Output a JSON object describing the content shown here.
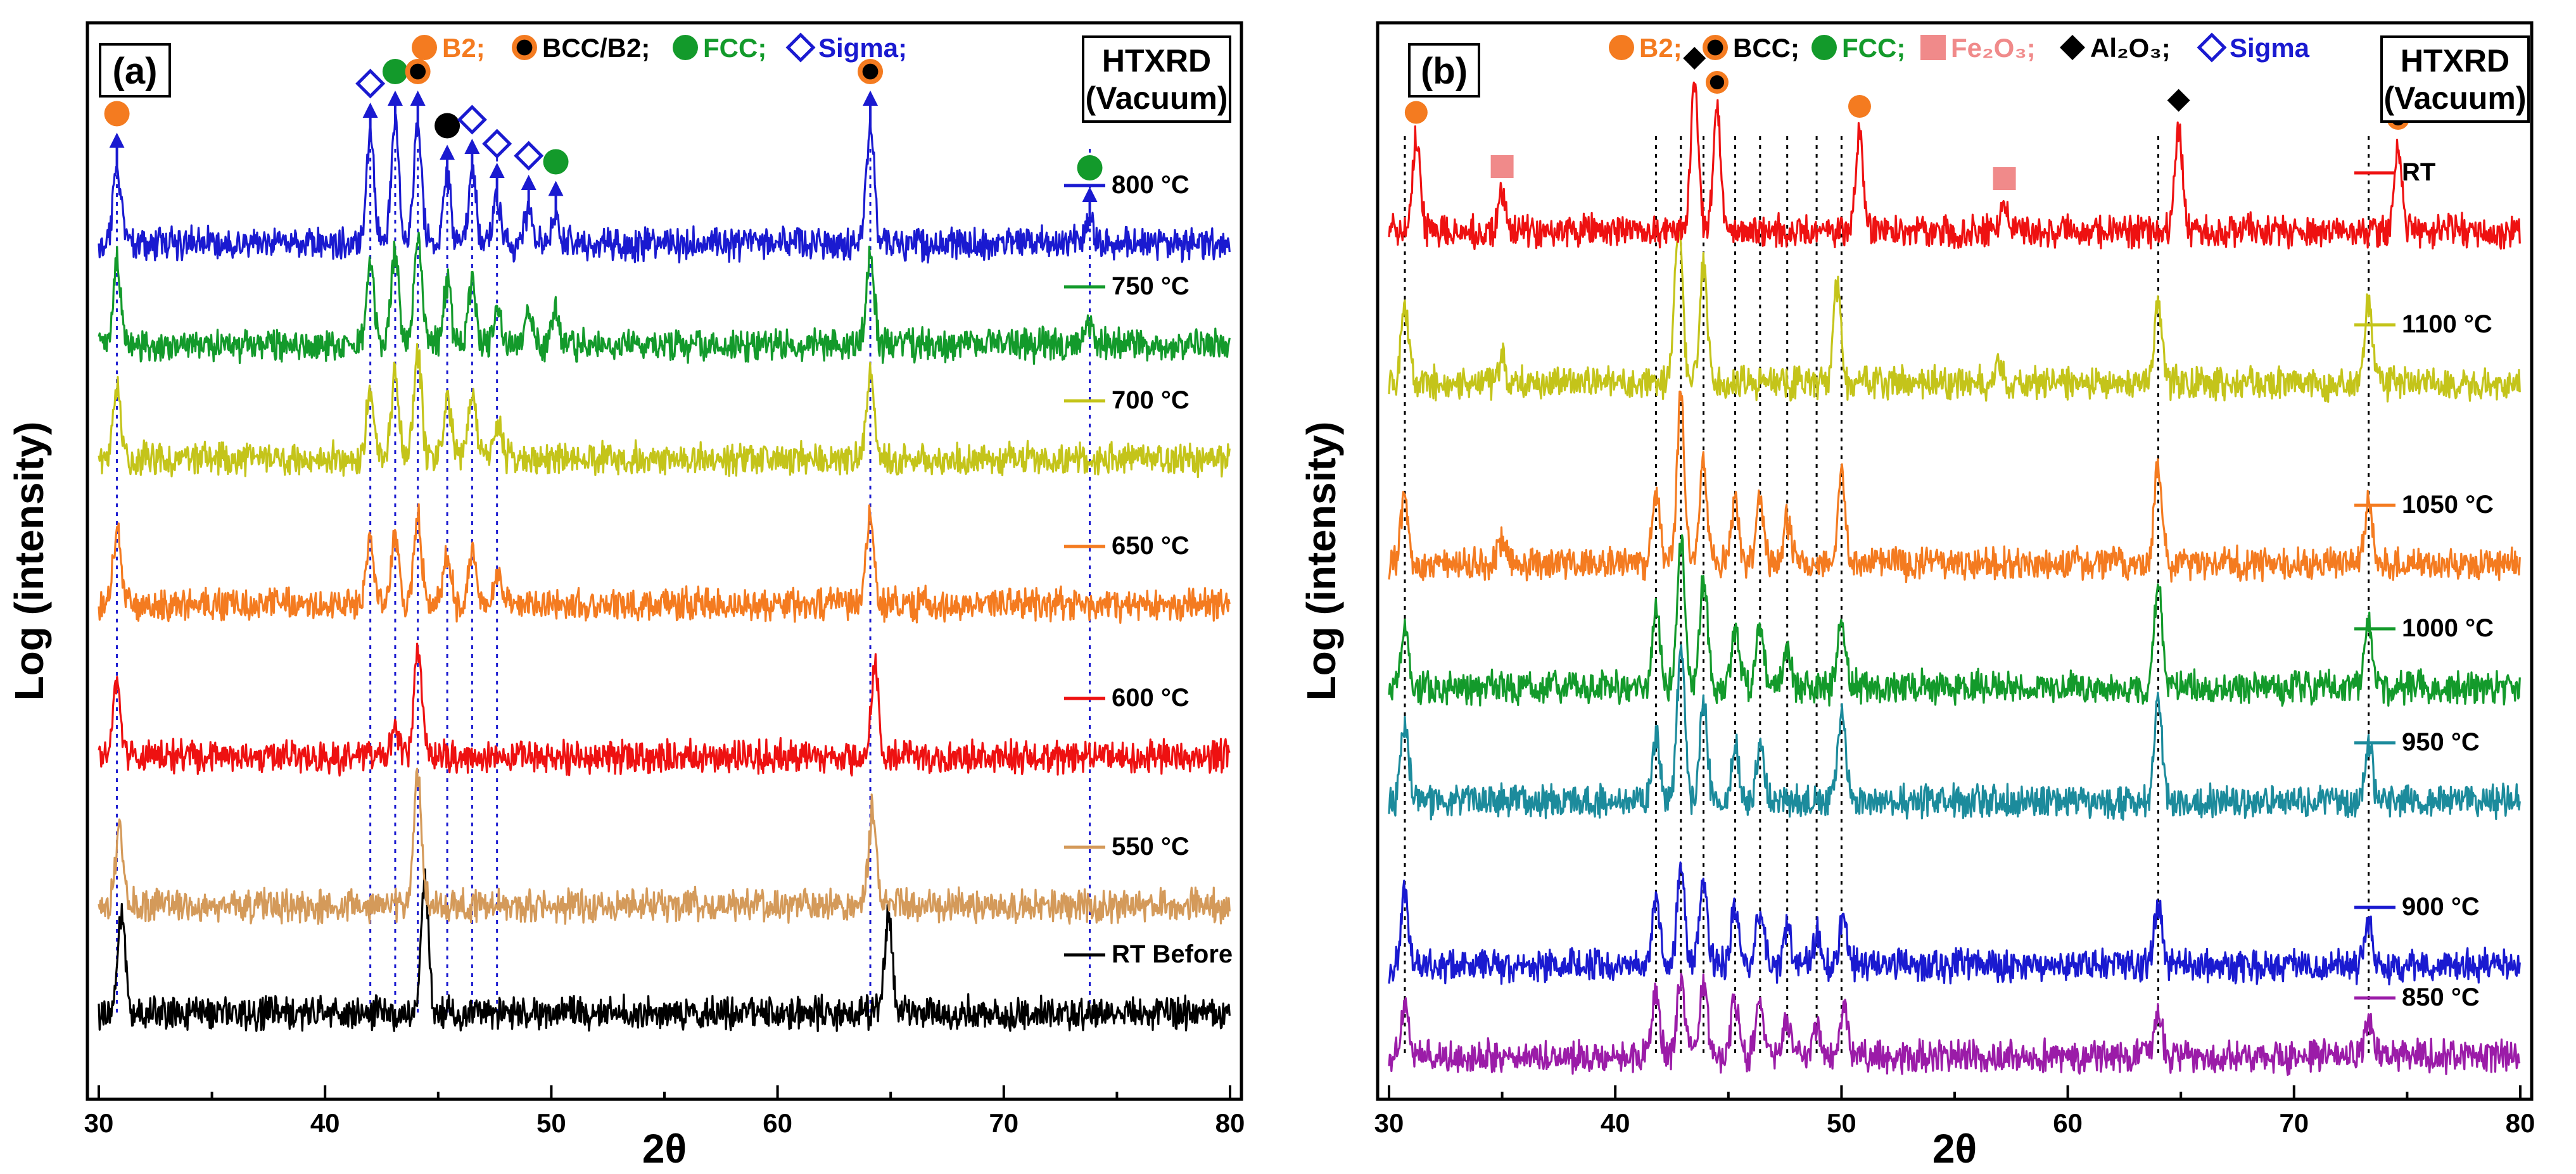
{
  "chart_data": [
    {
      "panel": "(a)",
      "type": "line",
      "title": "HTXRD (Vacuum)",
      "title_lines": [
        "HTXRD",
        "(Vacuum)"
      ],
      "xlabel": "2θ",
      "ylabel": "Log (intensity)",
      "xlim": [
        30,
        80
      ],
      "xticks": [
        30,
        40,
        50,
        60,
        70,
        80
      ],
      "legend": [
        {
          "name": "B2;",
          "marker": "circle",
          "color": "#f47b20"
        },
        {
          "name": "BCC/B2;",
          "marker": "circle-ring",
          "color": "#000000"
        },
        {
          "name": "FCC;",
          "marker": "circle",
          "color": "#139a2b"
        },
        {
          "name": "Sigma;",
          "marker": "diamond-open",
          "color": "#1a1ad0"
        }
      ],
      "series": [
        {
          "name": "RT Before",
          "color": "#000000",
          "peaks": [
            [
              31.0,
              1.6
            ],
            [
              44.4,
              2.2
            ],
            [
              64.9,
              1.6
            ]
          ]
        },
        {
          "name": "550 °C",
          "color": "#d49a5a",
          "peaks": [
            [
              30.9,
              1.3
            ],
            [
              44.1,
              2.2
            ],
            [
              64.2,
              1.6
            ]
          ]
        },
        {
          "name": "600 °C",
          "color": "#ee1111",
          "peaks": [
            [
              30.8,
              1.2
            ],
            [
              43.1,
              0.5
            ],
            [
              44.1,
              1.9
            ],
            [
              64.3,
              1.5
            ]
          ]
        },
        {
          "name": "650 °C",
          "color": "#f47b20",
          "peaks": [
            [
              30.8,
              1.2
            ],
            [
              42.0,
              1.0
            ],
            [
              43.1,
              1.1
            ],
            [
              44.1,
              1.5
            ],
            [
              45.4,
              0.8
            ],
            [
              46.5,
              0.9
            ],
            [
              47.6,
              0.5
            ],
            [
              64.1,
              1.6
            ]
          ]
        },
        {
          "name": "700 °C",
          "color": "#c4c41a",
          "peaks": [
            [
              30.8,
              1.3
            ],
            [
              42.0,
              1.2
            ],
            [
              43.1,
              1.4
            ],
            [
              44.1,
              1.7
            ],
            [
              45.4,
              1.0
            ],
            [
              46.5,
              1.0
            ],
            [
              47.6,
              0.6
            ],
            [
              64.1,
              1.5
            ]
          ]
        },
        {
          "name": "750 °C",
          "color": "#139a2b",
          "peaks": [
            [
              30.8,
              1.4
            ],
            [
              42.0,
              1.4
            ],
            [
              43.1,
              1.6
            ],
            [
              44.1,
              1.8
            ],
            [
              45.4,
              1.0
            ],
            [
              46.5,
              1.1
            ],
            [
              47.6,
              0.7
            ],
            [
              49.0,
              0.6
            ],
            [
              50.2,
              0.6
            ],
            [
              64.1,
              1.6
            ],
            [
              73.8,
              0.3
            ]
          ]
        },
        {
          "name": "800 °C",
          "color": "#1a1ad0",
          "peaks": [
            [
              30.8,
              1.3
            ],
            [
              42.0,
              1.8
            ],
            [
              43.1,
              2.0
            ],
            [
              44.1,
              2.0
            ],
            [
              45.4,
              1.1
            ],
            [
              46.5,
              1.2
            ],
            [
              47.6,
              0.8
            ],
            [
              49.0,
              0.6
            ],
            [
              50.2,
              0.5
            ],
            [
              64.1,
              2.0
            ],
            [
              73.8,
              0.4
            ]
          ]
        }
      ],
      "phase_markers": [
        {
          "x": 30.8,
          "phase": "B2"
        },
        {
          "x": 42.0,
          "phase": "Sigma"
        },
        {
          "x": 43.1,
          "phase": "FCC"
        },
        {
          "x": 44.1,
          "phase": "BCC/B2"
        },
        {
          "x": 45.4,
          "phase": "BCC"
        },
        {
          "x": 46.5,
          "phase": "Sigma"
        },
        {
          "x": 47.6,
          "phase": "Sigma"
        },
        {
          "x": 49.0,
          "phase": "Sigma"
        },
        {
          "x": 50.2,
          "phase": "FCC"
        },
        {
          "x": 64.1,
          "phase": "BCC/B2"
        },
        {
          "x": 73.8,
          "phase": "FCC"
        }
      ],
      "drop_lines": [
        30.8,
        42.0,
        43.1,
        44.1,
        45.4,
        46.5,
        47.6,
        64.1,
        73.8
      ]
    },
    {
      "panel": "(b)",
      "type": "line",
      "title": "HTXRD (Vacuum)",
      "title_lines": [
        "HTXRD",
        "(Vacuum)"
      ],
      "xlabel": "2θ",
      "ylabel": "Log (intensity)",
      "xlim": [
        30,
        80
      ],
      "xticks": [
        30,
        40,
        50,
        60,
        70,
        80
      ],
      "legend": [
        {
          "name": "B2;",
          "marker": "circle",
          "color": "#f47b20"
        },
        {
          "name": "BCC;",
          "marker": "circle-ring",
          "color": "#000000"
        },
        {
          "name": "FCC;",
          "marker": "circle",
          "color": "#139a2b"
        },
        {
          "name": "Fe₂O₃;",
          "marker": "square",
          "color": "#f08a8a"
        },
        {
          "name": "Al₂O₃;",
          "marker": "diamond",
          "color": "#000000"
        },
        {
          "name": "Sigma",
          "marker": "diamond-open",
          "color": "#1a1ad0"
        }
      ],
      "series": [
        {
          "name": "850 °C",
          "color": "#9b1ca8",
          "peaks": [
            [
              30.7,
              0.9
            ],
            [
              41.8,
              1.0
            ],
            [
              42.9,
              1.2
            ],
            [
              43.9,
              1.2
            ],
            [
              45.3,
              0.9
            ],
            [
              46.4,
              0.9
            ],
            [
              47.6,
              0.6
            ],
            [
              48.9,
              0.5
            ],
            [
              50.1,
              0.8
            ],
            [
              64.0,
              0.8
            ],
            [
              73.3,
              0.6
            ]
          ]
        },
        {
          "name": "900 °C",
          "color": "#1a1ad0",
          "peaks": [
            [
              30.7,
              1.2
            ],
            [
              41.8,
              1.1
            ],
            [
              42.9,
              1.6
            ],
            [
              43.9,
              1.4
            ],
            [
              45.3,
              1.0
            ],
            [
              46.4,
              1.0
            ],
            [
              47.6,
              0.6
            ],
            [
              48.9,
              0.5
            ],
            [
              50.1,
              0.8
            ],
            [
              64.0,
              1.0
            ],
            [
              73.3,
              0.7
            ]
          ]
        },
        {
          "name": "950 °C",
          "color": "#1c8b9c",
          "peaks": [
            [
              30.7,
              1.3
            ],
            [
              41.8,
              1.1
            ],
            [
              42.9,
              2.6
            ],
            [
              43.9,
              1.6
            ],
            [
              45.3,
              0.9
            ],
            [
              46.4,
              0.9
            ],
            [
              50.0,
              1.5
            ],
            [
              64.0,
              1.7
            ],
            [
              73.3,
              0.9
            ]
          ]
        },
        {
          "name": "1000 °C",
          "color": "#139a2b",
          "peaks": [
            [
              30.7,
              1.0
            ],
            [
              41.8,
              1.3
            ],
            [
              42.9,
              2.5
            ],
            [
              43.9,
              1.8
            ],
            [
              45.3,
              0.9
            ],
            [
              46.4,
              1.1
            ],
            [
              47.6,
              0.6
            ],
            [
              50.0,
              1.1
            ],
            [
              64.0,
              1.7
            ],
            [
              73.3,
              1.0
            ]
          ]
        },
        {
          "name": "1050 °C",
          "color": "#f47b20",
          "peaks": [
            [
              30.7,
              1.0
            ],
            [
              35.0,
              0.4
            ],
            [
              41.8,
              1.2
            ],
            [
              42.9,
              2.7
            ],
            [
              43.9,
              1.7
            ],
            [
              45.3,
              1.0
            ],
            [
              46.4,
              1.1
            ],
            [
              47.6,
              0.7
            ],
            [
              50.0,
              1.5
            ],
            [
              64.0,
              1.6
            ],
            [
              73.3,
              1.0
            ]
          ]
        },
        {
          "name": "1100 °C",
          "color": "#c4c41a",
          "peaks": [
            [
              30.7,
              1.2
            ],
            [
              35.0,
              0.4
            ],
            [
              42.8,
              2.7
            ],
            [
              43.9,
              1.9
            ],
            [
              49.8,
              1.6
            ],
            [
              57.0,
              0.3
            ],
            [
              64.0,
              1.4
            ],
            [
              73.3,
              1.3
            ]
          ]
        },
        {
          "name": "RT",
          "color": "#ee1111",
          "peaks": [
            [
              31.2,
              1.5
            ],
            [
              35.0,
              0.6
            ],
            [
              43.5,
              2.4
            ],
            [
              44.5,
              2.0
            ],
            [
              50.8,
              1.6
            ],
            [
              57.2,
              0.4
            ],
            [
              64.9,
              1.7
            ],
            [
              74.6,
              1.4
            ]
          ]
        }
      ],
      "drop_lines": [
        30.7,
        41.8,
        42.9,
        43.9,
        45.3,
        46.4,
        47.6,
        48.9,
        50.0,
        64.0,
        73.3
      ]
    }
  ]
}
